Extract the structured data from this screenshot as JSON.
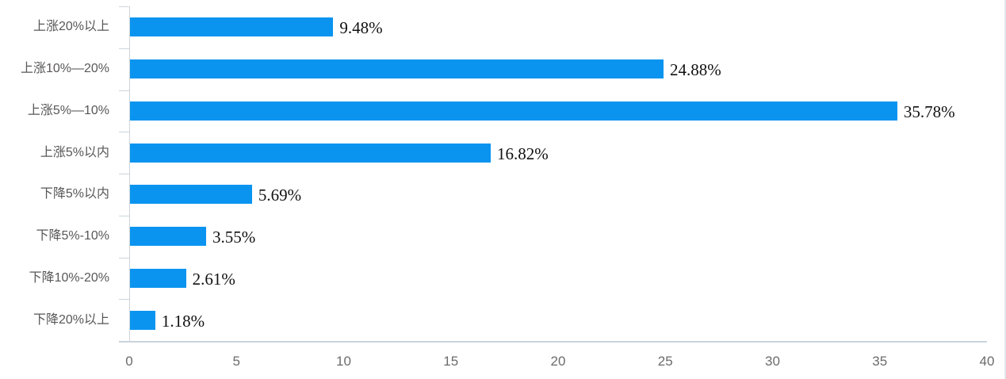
{
  "chart_data": {
    "type": "bar",
    "orientation": "horizontal",
    "title": "",
    "xlabel": "",
    "ylabel": "",
    "categories": [
      "上涨20%以上",
      "上涨10%—20%",
      "上涨5%—10%",
      "上涨5%以内",
      "下降5%以内",
      "下降5%-10%",
      "下降10%-20%",
      "下降20%以上"
    ],
    "values": [
      9.48,
      24.88,
      35.78,
      16.82,
      5.69,
      3.55,
      2.61,
      1.18
    ],
    "value_labels": [
      "9.48%",
      "24.88%",
      "35.78%",
      "16.82%",
      "5.69%",
      "3.55%",
      "2.61%",
      "1.18%"
    ],
    "x_ticks": [
      0,
      5,
      10,
      15,
      20,
      25,
      30,
      35,
      40
    ],
    "xlim": [
      0,
      40
    ],
    "grid": false,
    "legend": "none",
    "colors": {
      "bar": "#0a94f0",
      "axis": "#c9d4da",
      "tick": "#ccd5db",
      "category_label": "#595757",
      "axis_tick_label": "#6b6b6b",
      "value_label": "#111111"
    }
  }
}
